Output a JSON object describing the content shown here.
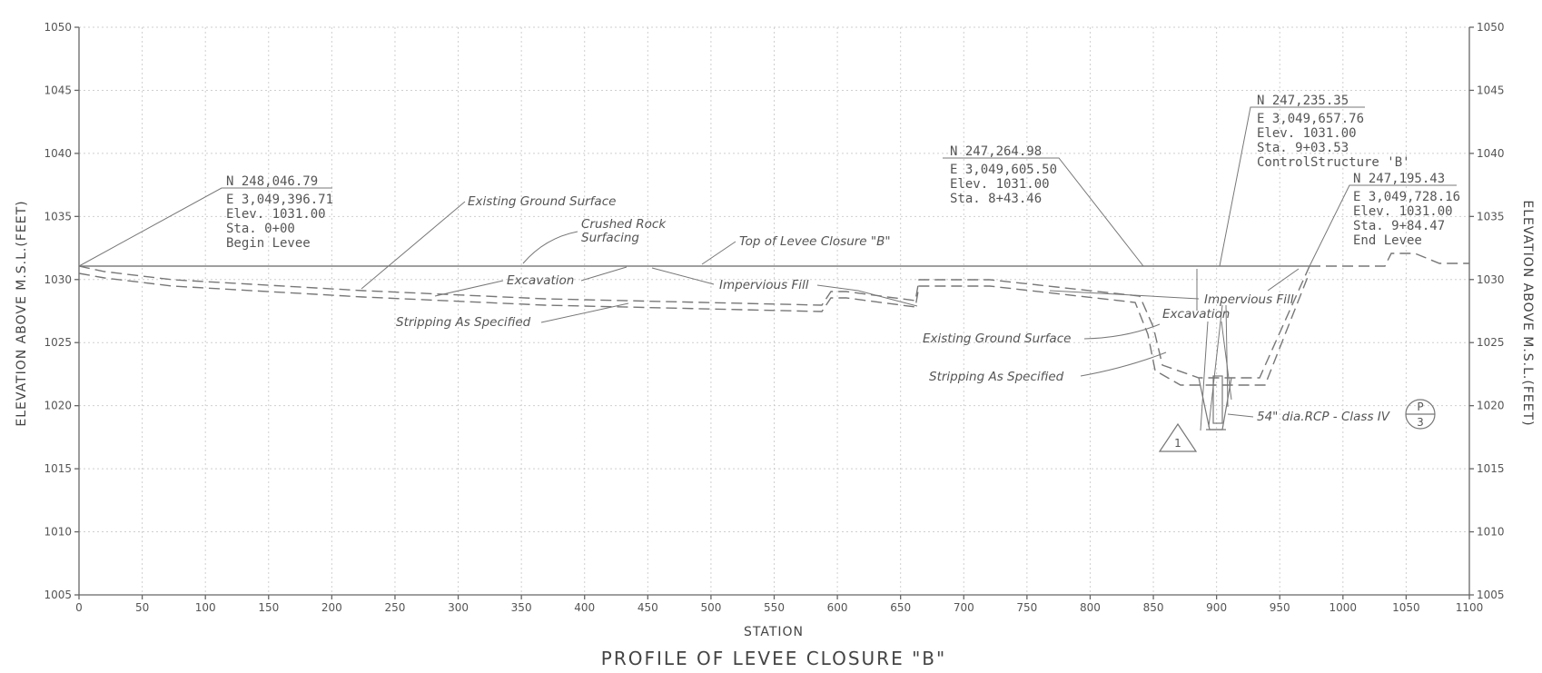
{
  "title": "PROFILE OF LEVEE CLOSURE \"B\"",
  "x_axis_label": "STATION",
  "y_axis_label": "ELEVATION ABOVE M.S.L.(FEET)",
  "x_ticks": [
    "0",
    "50",
    "100",
    "150",
    "200",
    "250",
    "300",
    "350",
    "400",
    "450",
    "500",
    "550",
    "600",
    "650",
    "700",
    "750",
    "800",
    "850",
    "900",
    "950",
    "1000",
    "1050",
    "1100"
  ],
  "y_ticks": [
    "1005",
    "1010",
    "1015",
    "1020",
    "1025",
    "1030",
    "1035",
    "1040",
    "1045",
    "1050"
  ],
  "points": {
    "begin": {
      "n": "N 248,046.79",
      "e": "E 3,049,396.71",
      "elev": "Elev. 1031.00",
      "sta": "Sta. 0+00",
      "desc": "Begin Levee"
    },
    "mid": {
      "n": "N 247,264.98",
      "e": "E 3,049,605.50",
      "elev": "Elev. 1031.00",
      "sta": "Sta. 8+43.46"
    },
    "control": {
      "n": "N 247,235.35",
      "e": "E 3,049,657.76",
      "elev": "Elev. 1031.00",
      "sta": "Sta. 9+03.53",
      "desc": "ControlStructure 'B'"
    },
    "end": {
      "n": "N 247,195.43",
      "e": "E 3,049,728.16",
      "elev": "Elev. 1031.00",
      "sta": "Sta. 9+84.47",
      "desc": "End Levee"
    }
  },
  "notes": {
    "existing_ground_1": "Existing Ground Surface",
    "crushed_rock_1": "Crushed Rock",
    "crushed_rock_2": "Surfacing",
    "top_of_levee": "Top of Levee Closure \"B\"",
    "excavation_1": "Excavation",
    "impervious_fill_1": "Impervious Fill",
    "stripping_1": "Stripping As Specified",
    "impervious_fill_2": "Impervious Fill",
    "excavation_2": "Excavation",
    "existing_ground_2": "Existing Ground Surface",
    "stripping_2": "Stripping As Specified",
    "pipe": "54\" dia.RCP - Class IV",
    "detail_top": "P",
    "detail_bottom": "3",
    "revision": "1"
  },
  "colors": {
    "ink": "#666666",
    "grid": "#cfcfcf",
    "background": "#ffffff"
  }
}
